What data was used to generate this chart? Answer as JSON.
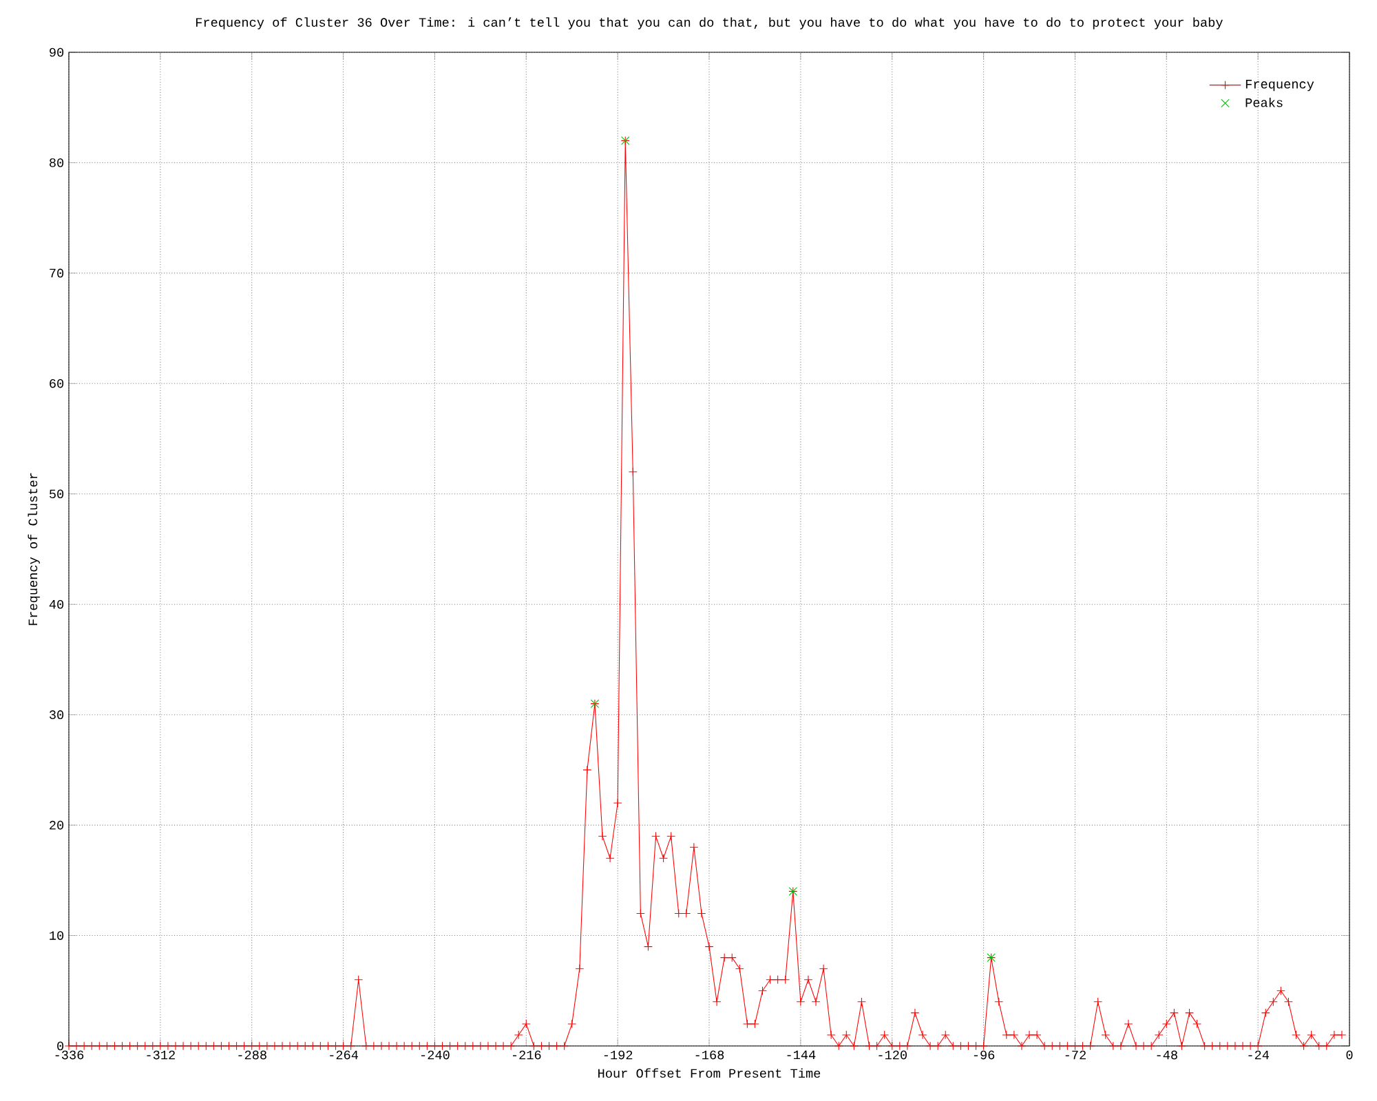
{
  "chart_data": {
    "type": "line",
    "title": "Frequency of Cluster 36 Over Time: i can’t tell you that you can do that, but you have to do what you have to do to protect your baby",
    "xlabel": "Hour Offset From Present Time",
    "ylabel": "Frequency of Cluster",
    "x": [
      -336,
      -334,
      -332,
      -330,
      -328,
      -326,
      -324,
      -322,
      -320,
      -318,
      -316,
      -314,
      -312,
      -310,
      -308,
      -306,
      -304,
      -302,
      -300,
      -298,
      -296,
      -294,
      -292,
      -290,
      -288,
      -286,
      -284,
      -282,
      -280,
      -278,
      -276,
      -274,
      -272,
      -270,
      -268,
      -266,
      -264,
      -262,
      -260,
      -258,
      -256,
      -254,
      -252,
      -250,
      -248,
      -246,
      -244,
      -242,
      -240,
      -238,
      -236,
      -234,
      -232,
      -230,
      -228,
      -226,
      -224,
      -222,
      -220,
      -218,
      -216,
      -214,
      -212,
      -210,
      -208,
      -206,
      -204,
      -202,
      -200,
      -198,
      -196,
      -194,
      -192,
      -190,
      -188,
      -186,
      -184,
      -182,
      -180,
      -178,
      -176,
      -174,
      -172,
      -170,
      -168,
      -166,
      -164,
      -162,
      -160,
      -158,
      -156,
      -154,
      -152,
      -150,
      -148,
      -146,
      -144,
      -142,
      -140,
      -138,
      -136,
      -134,
      -132,
      -130,
      -128,
      -126,
      -124,
      -122,
      -120,
      -118,
      -116,
      -114,
      -112,
      -110,
      -108,
      -106,
      -104,
      -102,
      -100,
      -98,
      -96,
      -94,
      -92,
      -90,
      -88,
      -86,
      -84,
      -82,
      -80,
      -78,
      -76,
      -74,
      -72,
      -70,
      -68,
      -66,
      -64,
      -62,
      -60,
      -58,
      -56,
      -54,
      -52,
      -50,
      -48,
      -46,
      -44,
      -42,
      -40,
      -38,
      -36,
      -34,
      -32,
      -30,
      -28,
      -26,
      -24,
      -22,
      -20,
      -18,
      -16,
      -14,
      -12,
      -10,
      -8,
      -6,
      -4,
      -2
    ],
    "series": [
      {
        "name": "Frequency",
        "color": "#ff0000",
        "values": [
          0,
          0,
          0,
          0,
          0,
          0,
          0,
          0,
          0,
          0,
          0,
          0,
          0,
          0,
          0,
          0,
          0,
          0,
          0,
          0,
          0,
          0,
          0,
          0,
          0,
          0,
          0,
          0,
          0,
          0,
          0,
          0,
          0,
          0,
          0,
          0,
          0,
          0,
          6,
          0,
          0,
          0,
          0,
          0,
          0,
          0,
          0,
          0,
          0,
          0,
          0,
          0,
          0,
          0,
          0,
          0,
          0,
          0,
          0,
          1,
          2,
          0,
          0,
          0,
          0,
          0,
          2,
          7,
          25,
          31,
          19,
          17,
          22,
          82,
          52,
          12,
          9,
          19,
          17,
          19,
          12,
          12,
          18,
          12,
          9,
          4,
          8,
          8,
          7,
          2,
          2,
          5,
          6,
          6,
          6,
          14,
          4,
          6,
          4,
          7,
          1,
          0,
          1,
          0,
          4,
          0,
          0,
          1,
          0,
          0,
          0,
          3,
          1,
          0,
          0,
          1,
          0,
          0,
          0,
          0,
          0,
          8,
          4,
          1,
          1,
          0,
          1,
          1,
          0,
          0,
          0,
          0,
          0,
          0,
          0,
          4,
          1,
          0,
          0,
          2,
          0,
          0,
          0,
          1,
          2,
          3,
          0,
          3,
          2,
          0,
          0,
          0,
          0,
          0,
          0,
          0,
          0,
          3,
          4,
          5,
          4,
          1,
          0,
          1,
          0,
          0,
          1,
          1
        ]
      },
      {
        "name": "Peaks",
        "type": "scatter",
        "color": "#00c000",
        "x": [
          -198,
          -190,
          -146,
          -94
        ],
        "values": [
          31,
          82,
          14,
          8
        ]
      }
    ],
    "xlim": [
      -336,
      0
    ],
    "xticks": [
      -336,
      -312,
      -288,
      -264,
      -240,
      -216,
      -192,
      -168,
      -144,
      -120,
      -96,
      -72,
      -48,
      -24,
      0
    ],
    "ylim": [
      0,
      90
    ],
    "yticks": [
      0,
      10,
      20,
      30,
      40,
      50,
      60,
      70,
      80,
      90
    ],
    "grid": true,
    "legend": "top right",
    "marker": "cross"
  }
}
